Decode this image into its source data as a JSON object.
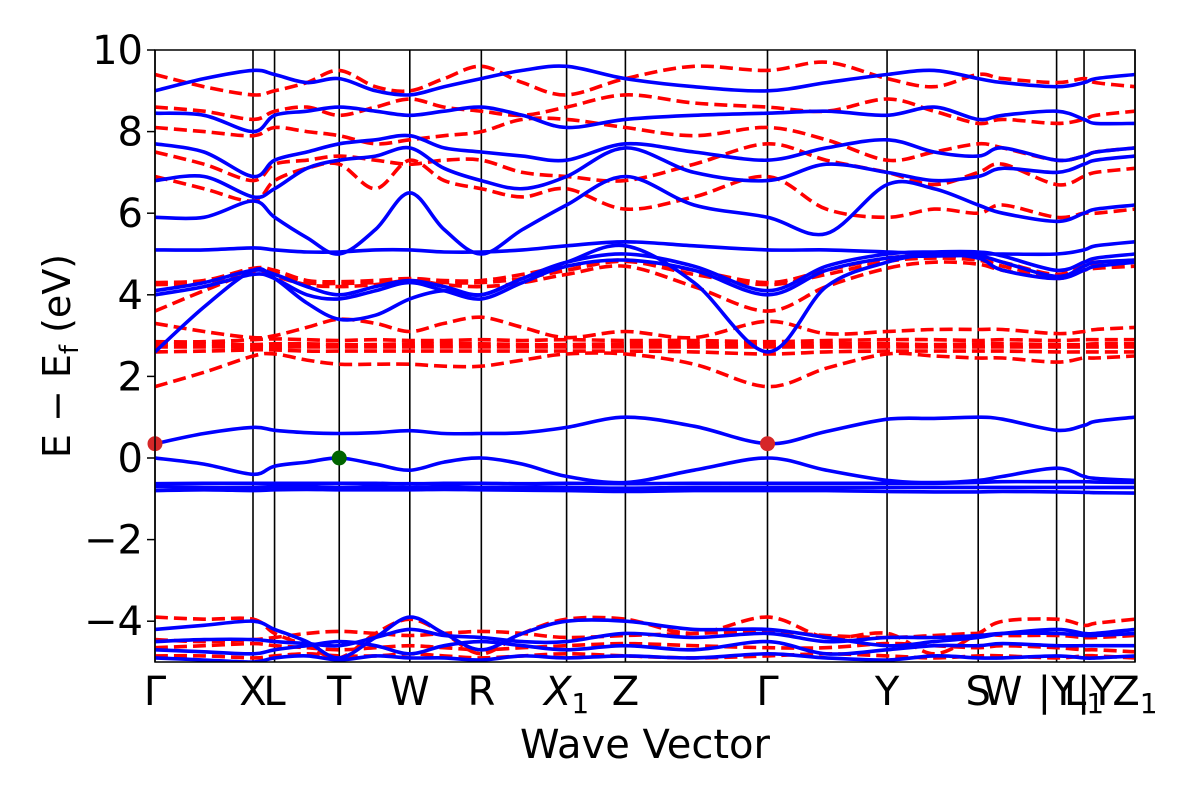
{
  "chart_data": {
    "type": "line",
    "xlabel": "Wave Vector",
    "ylabel": "E − E",
    "ylabel_sub": "f",
    "ylabel_unit": " (eV)",
    "ylim": [
      -5,
      10
    ],
    "xlim": [
      0,
      10
    ],
    "yticks": [
      -4,
      -2,
      0,
      2,
      4,
      6,
      8,
      10
    ],
    "ytick_labels": [
      "−4",
      "−2",
      "0",
      "2",
      "4",
      "6",
      "8",
      "10"
    ],
    "kpoints": [
      {
        "label": "Γ",
        "x": 0.0
      },
      {
        "label": "X",
        "x": 1.0
      },
      {
        "label": "L",
        "x": 1.22
      },
      {
        "label": "T",
        "x": 1.88
      },
      {
        "label": "W",
        "x": 2.6
      },
      {
        "label": "R",
        "x": 3.33
      },
      {
        "label": "X",
        "sub": "1",
        "italic": true,
        "x": 4.2
      },
      {
        "label": "Z",
        "x": 4.8
      },
      {
        "label": "Γ",
        "x": 6.25
      },
      {
        "label": "Y",
        "x": 7.47
      },
      {
        "label": "S",
        "x": 8.4
      },
      {
        "label": "W",
        "x": 8.65
      },
      {
        "label": "|Y",
        "x": 9.2
      },
      {
        "label": "L",
        "sub": "1",
        "x": 9.48
      },
      {
        "label": "|Y",
        "x": 9.6
      },
      {
        "label": "Z",
        "sub": "1",
        "x": 10.0
      }
    ],
    "vlines_at": [
      0,
      1.0,
      1.22,
      1.88,
      2.6,
      3.33,
      4.2,
      4.8,
      6.25,
      7.47,
      8.4,
      9.2,
      9.48,
      10.0
    ],
    "colors": {
      "spin_up": "#0000ff",
      "spin_down": "#ff0000",
      "cbm": "#d62728",
      "vbm": "#006400",
      "axes": "#000000"
    },
    "x_samples": [
      0,
      0.5,
      1.0,
      1.22,
      1.55,
      1.88,
      2.25,
      2.6,
      2.95,
      3.33,
      3.75,
      4.2,
      4.8,
      5.5,
      6.25,
      6.85,
      7.47,
      7.95,
      8.4,
      8.65,
      9.2,
      9.48,
      9.6,
      10.0
    ],
    "series": [
      {
        "style": "solid",
        "values": [
          -0.8,
          -0.78,
          -0.8,
          -0.78,
          -0.77,
          -0.78,
          -0.78,
          -0.78,
          -0.77,
          -0.78,
          -0.79,
          -0.8,
          -0.82,
          -0.8,
          -0.8,
          -0.8,
          -0.82,
          -0.83,
          -0.83,
          -0.82,
          -0.83,
          -0.84,
          -0.85,
          -0.86
        ]
      },
      {
        "style": "solid",
        "values": [
          -0.7,
          -0.72,
          -0.72,
          -0.7,
          -0.7,
          -0.72,
          -0.7,
          -0.72,
          -0.7,
          -0.72,
          -0.72,
          -0.72,
          -0.74,
          -0.72,
          -0.72,
          -0.72,
          -0.72,
          -0.72,
          -0.72,
          -0.72,
          -0.72,
          -0.72,
          -0.72,
          -0.72
        ]
      },
      {
        "style": "solid",
        "values": [
          -0.63,
          -0.62,
          -0.62,
          -0.62,
          -0.62,
          -0.62,
          -0.62,
          -0.63,
          -0.62,
          -0.62,
          -0.63,
          -0.62,
          -0.63,
          -0.62,
          -0.62,
          -0.62,
          -0.62,
          -0.62,
          -0.6,
          -0.58,
          -0.58,
          -0.58,
          -0.59,
          -0.6
        ]
      },
      {
        "style": "solid",
        "values": [
          0.0,
          -0.15,
          -0.4,
          -0.2,
          -0.1,
          0.0,
          -0.15,
          -0.3,
          -0.1,
          0.0,
          -0.15,
          -0.45,
          -0.6,
          -0.3,
          0.0,
          -0.3,
          -0.55,
          -0.6,
          -0.55,
          -0.45,
          -0.25,
          -0.45,
          -0.5,
          -0.55
        ]
      },
      {
        "style": "solid",
        "values": [
          0.35,
          0.6,
          0.75,
          0.68,
          0.62,
          0.6,
          0.62,
          0.67,
          0.6,
          0.6,
          0.62,
          0.75,
          1.0,
          0.78,
          0.35,
          0.65,
          0.95,
          0.97,
          1.0,
          0.95,
          0.68,
          0.8,
          0.9,
          1.0
        ]
      },
      {
        "style": "dashed",
        "values": [
          1.75,
          2.1,
          2.5,
          2.55,
          2.4,
          2.3,
          2.3,
          2.3,
          2.25,
          2.25,
          2.4,
          2.55,
          2.55,
          2.3,
          1.75,
          2.2,
          2.55,
          2.5,
          2.45,
          2.45,
          2.35,
          2.45,
          2.45,
          2.5
        ]
      },
      {
        "style": "dashed",
        "values": [
          2.6,
          2.62,
          2.65,
          2.65,
          2.62,
          2.62,
          2.62,
          2.62,
          2.62,
          2.62,
          2.62,
          2.62,
          2.62,
          2.6,
          2.55,
          2.6,
          2.62,
          2.62,
          2.62,
          2.62,
          2.6,
          2.6,
          2.6,
          2.6
        ]
      },
      {
        "style": "dashed",
        "values": [
          2.72,
          2.72,
          2.72,
          2.72,
          2.72,
          2.72,
          2.72,
          2.72,
          2.72,
          2.72,
          2.72,
          2.72,
          2.72,
          2.72,
          2.72,
          2.72,
          2.72,
          2.72,
          2.72,
          2.72,
          2.72,
          2.72,
          2.72,
          2.72
        ]
      },
      {
        "style": "dashed",
        "values": [
          2.78,
          2.8,
          2.78,
          2.8,
          2.8,
          2.78,
          2.78,
          2.8,
          2.8,
          2.8,
          2.78,
          2.78,
          2.8,
          2.8,
          2.78,
          2.8,
          2.8,
          2.78,
          2.8,
          2.8,
          2.78,
          2.78,
          2.8,
          2.8
        ]
      },
      {
        "style": "dashed",
        "values": [
          2.85,
          2.85,
          2.9,
          2.92,
          2.9,
          2.88,
          2.9,
          2.88,
          2.88,
          2.9,
          2.88,
          2.9,
          2.88,
          2.88,
          2.85,
          2.88,
          2.9,
          2.9,
          2.88,
          2.9,
          2.88,
          2.9,
          2.9,
          2.9
        ]
      },
      {
        "style": "dashed",
        "values": [
          3.3,
          3.1,
          2.95,
          3.0,
          3.2,
          3.4,
          3.3,
          3.1,
          3.3,
          3.45,
          3.2,
          2.95,
          3.1,
          2.95,
          3.35,
          3.05,
          3.1,
          3.15,
          3.15,
          3.15,
          3.05,
          3.1,
          3.15,
          3.2
        ]
      },
      {
        "style": "dashed",
        "values": [
          3.6,
          4.1,
          4.55,
          4.45,
          4.25,
          4.2,
          4.25,
          4.35,
          4.25,
          4.2,
          4.3,
          4.5,
          4.7,
          4.2,
          3.6,
          4.2,
          4.65,
          4.8,
          4.75,
          4.6,
          4.4,
          4.6,
          4.65,
          4.7
        ]
      },
      {
        "style": "dashed",
        "values": [
          4.25,
          4.3,
          4.6,
          4.55,
          4.3,
          4.28,
          4.3,
          4.35,
          4.3,
          4.3,
          4.4,
          4.6,
          4.82,
          4.5,
          4.25,
          4.5,
          4.82,
          4.9,
          4.85,
          4.7,
          4.45,
          4.7,
          4.75,
          4.8
        ]
      },
      {
        "style": "dashed",
        "values": [
          4.3,
          4.35,
          4.65,
          4.6,
          4.35,
          4.32,
          4.35,
          4.4,
          4.35,
          4.35,
          4.5,
          4.7,
          4.85,
          4.6,
          4.3,
          4.6,
          4.9,
          4.95,
          4.9,
          4.8,
          4.5,
          4.8,
          4.8,
          4.85
        ]
      },
      {
        "style": "solid",
        "values": [
          2.6,
          3.7,
          4.6,
          4.4,
          3.8,
          3.4,
          3.5,
          3.9,
          4.1,
          4.0,
          4.4,
          4.8,
          5.2,
          4.3,
          2.6,
          4.2,
          4.8,
          5.0,
          4.9,
          4.6,
          4.4,
          4.6,
          4.7,
          4.8
        ]
      },
      {
        "style": "solid",
        "values": [
          4.0,
          4.2,
          4.5,
          4.4,
          4.0,
          3.9,
          4.1,
          4.3,
          4.1,
          3.9,
          4.3,
          4.7,
          4.85,
          4.6,
          4.0,
          4.6,
          4.9,
          4.95,
          4.95,
          4.8,
          4.45,
          4.7,
          4.8,
          4.85
        ]
      },
      {
        "style": "solid",
        "values": [
          4.1,
          4.3,
          4.6,
          4.5,
          4.2,
          4.0,
          4.2,
          4.35,
          4.2,
          4.0,
          4.4,
          4.8,
          5.0,
          4.7,
          4.1,
          4.7,
          5.0,
          5.05,
          5.05,
          4.95,
          4.6,
          4.8,
          4.9,
          5.0
        ]
      },
      {
        "style": "solid",
        "values": [
          5.1,
          5.1,
          5.15,
          5.1,
          5.05,
          5.05,
          5.1,
          5.1,
          5.05,
          5.05,
          5.1,
          5.2,
          5.3,
          5.2,
          5.1,
          5.1,
          5.05,
          5.0,
          5.0,
          5.0,
          5.0,
          5.1,
          5.2,
          5.3
        ]
      },
      {
        "style": "solid",
        "values": [
          5.9,
          5.9,
          6.3,
          5.9,
          5.4,
          5.0,
          5.6,
          6.5,
          5.6,
          5.0,
          5.6,
          6.2,
          6.9,
          6.2,
          5.9,
          5.5,
          6.7,
          6.6,
          6.2,
          6.0,
          5.8,
          6.0,
          6.1,
          6.2
        ]
      },
      {
        "style": "solid",
        "values": [
          6.8,
          6.9,
          6.4,
          6.6,
          7.1,
          7.3,
          7.4,
          7.6,
          7.1,
          6.8,
          6.6,
          6.9,
          7.6,
          7.0,
          6.8,
          7.2,
          7.0,
          6.8,
          6.9,
          7.1,
          7.0,
          7.2,
          7.3,
          7.4
        ]
      },
      {
        "style": "solid",
        "values": [
          7.7,
          7.5,
          6.9,
          7.3,
          7.5,
          7.7,
          7.8,
          7.9,
          7.6,
          7.5,
          7.4,
          7.3,
          7.7,
          7.5,
          7.3,
          7.6,
          7.8,
          7.5,
          7.4,
          7.6,
          7.3,
          7.4,
          7.5,
          7.6
        ]
      },
      {
        "style": "solid",
        "values": [
          8.45,
          8.4,
          8.0,
          8.4,
          8.5,
          8.6,
          8.5,
          8.4,
          8.5,
          8.6,
          8.4,
          8.1,
          8.3,
          8.4,
          8.45,
          8.5,
          8.4,
          8.6,
          8.3,
          8.4,
          8.5,
          8.3,
          8.2,
          8.2
        ]
      },
      {
        "style": "solid",
        "values": [
          9.0,
          9.3,
          9.5,
          9.4,
          9.2,
          9.3,
          9.0,
          8.9,
          9.1,
          9.3,
          9.5,
          9.6,
          9.3,
          9.1,
          9.0,
          9.2,
          9.4,
          9.5,
          9.3,
          9.2,
          9.1,
          9.2,
          9.3,
          9.4
        ]
      },
      {
        "style": "dashed",
        "values": [
          6.9,
          6.6,
          6.3,
          6.8,
          7.1,
          7.2,
          6.6,
          7.3,
          6.8,
          6.6,
          6.4,
          6.6,
          6.1,
          6.4,
          6.9,
          6.1,
          5.9,
          6.1,
          6.0,
          6.2,
          5.9,
          6.0,
          6.0,
          6.1
        ]
      },
      {
        "style": "dashed",
        "values": [
          7.5,
          7.2,
          6.8,
          7.2,
          7.3,
          7.4,
          7.3,
          7.2,
          7.3,
          7.3,
          7.0,
          6.9,
          6.8,
          7.2,
          7.7,
          7.3,
          7.0,
          6.7,
          7.0,
          7.2,
          6.7,
          6.9,
          7.0,
          7.1
        ]
      },
      {
        "style": "dashed",
        "values": [
          8.1,
          8.0,
          7.9,
          8.1,
          8.0,
          7.9,
          7.7,
          7.8,
          7.9,
          8.0,
          8.3,
          8.3,
          8.1,
          7.9,
          8.1,
          7.8,
          7.3,
          7.5,
          7.7,
          7.6,
          7.3,
          7.4,
          7.5,
          7.6
        ]
      },
      {
        "style": "dashed",
        "values": [
          8.6,
          8.5,
          8.3,
          8.5,
          8.6,
          8.4,
          8.6,
          8.8,
          8.6,
          8.5,
          8.4,
          8.6,
          8.9,
          8.7,
          8.6,
          8.5,
          8.8,
          8.5,
          8.2,
          8.3,
          8.2,
          8.3,
          8.4,
          8.5
        ]
      },
      {
        "style": "dashed",
        "values": [
          9.4,
          9.1,
          8.9,
          9.0,
          9.2,
          9.5,
          9.1,
          9.0,
          9.3,
          9.6,
          9.2,
          8.9,
          9.3,
          9.6,
          9.5,
          9.7,
          9.3,
          9.1,
          9.4,
          9.3,
          9.2,
          9.3,
          9.2,
          9.1
        ]
      },
      {
        "style": "solid",
        "values": [
          -4.2,
          -4.1,
          -4.0,
          -4.2,
          -4.5,
          -4.9,
          -4.4,
          -3.9,
          -4.3,
          -4.7,
          -4.3,
          -4.0,
          -4.0,
          -4.2,
          -4.2,
          -4.4,
          -4.6,
          -4.5,
          -4.4,
          -4.3,
          -4.2,
          -4.3,
          -4.3,
          -4.2
        ]
      },
      {
        "style": "solid",
        "values": [
          -4.5,
          -4.45,
          -4.45,
          -4.5,
          -4.55,
          -4.6,
          -4.4,
          -4.2,
          -4.35,
          -4.4,
          -4.5,
          -4.5,
          -4.3,
          -4.4,
          -4.3,
          -4.5,
          -4.4,
          -4.4,
          -4.35,
          -4.3,
          -4.3,
          -4.35,
          -4.35,
          -4.3
        ]
      },
      {
        "style": "solid",
        "values": [
          -4.7,
          -4.75,
          -4.8,
          -4.7,
          -4.6,
          -4.5,
          -4.6,
          -4.8,
          -4.6,
          -4.5,
          -4.6,
          -4.7,
          -4.6,
          -4.7,
          -4.5,
          -4.8,
          -4.7,
          -4.6,
          -4.6,
          -4.55,
          -4.6,
          -4.6,
          -4.6,
          -4.6
        ]
      },
      {
        "style": "solid",
        "values": [
          -4.9,
          -4.95,
          -5.0,
          -4.9,
          -4.85,
          -4.95,
          -4.85,
          -4.9,
          -4.9,
          -4.95,
          -4.85,
          -4.9,
          -4.85,
          -4.9,
          -4.8,
          -4.9,
          -4.95,
          -4.85,
          -4.9,
          -4.9,
          -4.85,
          -4.9,
          -4.9,
          -4.85
        ]
      },
      {
        "style": "dashed",
        "values": [
          -3.9,
          -3.95,
          -3.95,
          -4.3,
          -4.6,
          -4.9,
          -4.3,
          -3.95,
          -4.3,
          -4.8,
          -4.3,
          -3.95,
          -3.95,
          -4.3,
          -3.9,
          -4.4,
          -4.3,
          -4.8,
          -4.3,
          -4.0,
          -3.95,
          -4.1,
          -4.05,
          -3.95
        ]
      },
      {
        "style": "dashed",
        "values": [
          -4.45,
          -4.5,
          -4.45,
          -4.4,
          -4.3,
          -4.25,
          -4.3,
          -4.35,
          -4.3,
          -4.25,
          -4.3,
          -4.4,
          -4.35,
          -4.3,
          -4.25,
          -4.35,
          -4.4,
          -4.35,
          -4.3,
          -4.35,
          -4.35,
          -4.4,
          -4.4,
          -4.35
        ]
      },
      {
        "style": "dashed",
        "values": [
          -4.65,
          -4.6,
          -4.55,
          -4.6,
          -4.65,
          -4.7,
          -4.65,
          -4.6,
          -4.65,
          -4.7,
          -4.65,
          -4.6,
          -4.55,
          -4.6,
          -4.65,
          -4.65,
          -4.55,
          -4.6,
          -4.65,
          -4.6,
          -4.65,
          -4.7,
          -4.7,
          -4.75
        ]
      },
      {
        "style": "dashed",
        "values": [
          -4.85,
          -4.85,
          -4.9,
          -4.85,
          -4.8,
          -4.85,
          -4.85,
          -4.8,
          -4.85,
          -4.9,
          -4.85,
          -4.8,
          -4.85,
          -4.9,
          -4.85,
          -4.8,
          -4.85,
          -4.9,
          -4.85,
          -4.85,
          -4.9,
          -4.85,
          -4.85,
          -4.9
        ]
      }
    ],
    "markers": [
      {
        "role": "cbm",
        "x": 0.0,
        "y": 0.35
      },
      {
        "role": "cbm",
        "x": 6.25,
        "y": 0.35
      },
      {
        "role": "vbm",
        "x": 1.88,
        "y": 0.0
      }
    ],
    "grid": false
  }
}
